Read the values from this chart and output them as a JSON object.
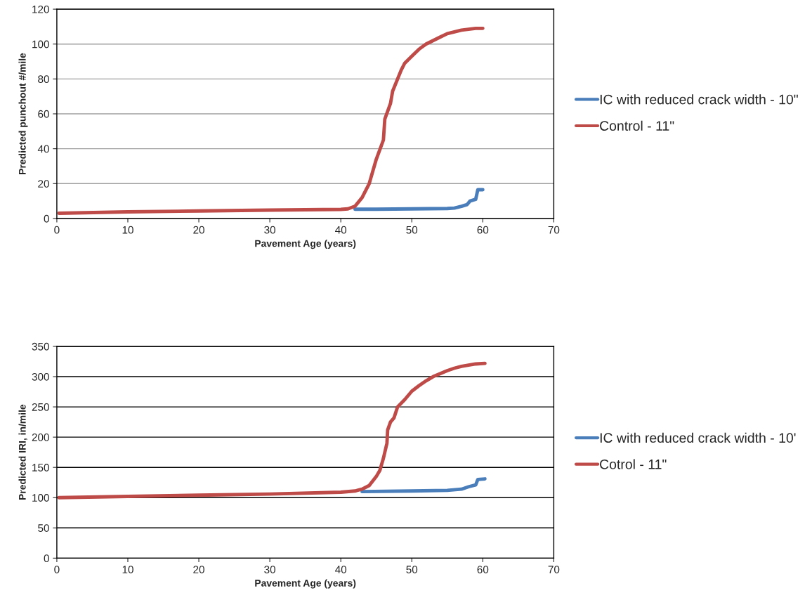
{
  "chart_data": [
    {
      "type": "line",
      "xlabel": "Pavement Age (years)",
      "ylabel": "Predicted punchout #/mile",
      "xlim": [
        0,
        70
      ],
      "xticks": [
        0,
        10,
        20,
        30,
        40,
        50,
        60,
        70
      ],
      "ylim": [
        0,
        120
      ],
      "yticks": [
        0,
        20,
        40,
        60,
        80,
        100,
        120
      ],
      "grid": "y",
      "legend": "right",
      "series": [
        {
          "name": "IC with reduced crack width - 10\"",
          "color": "#4a7ebb",
          "x": [
            42,
            45,
            50,
            55,
            56,
            57,
            57.8,
            58.2,
            59,
            59.3,
            60
          ],
          "values": [
            5.3,
            5.3,
            5.5,
            5.7,
            6,
            7,
            8,
            10,
            11,
            16.5,
            16.5
          ]
        },
        {
          "name": "Control - 11\"",
          "color": "#be4b48",
          "x": [
            0.3,
            10,
            20,
            30,
            40,
            41,
            42,
            43,
            44,
            45,
            46,
            46.2,
            47,
            47.3,
            48,
            48.5,
            49,
            50,
            51,
            52,
            53,
            54,
            55,
            56,
            57,
            58,
            59,
            60
          ],
          "values": [
            3,
            3.8,
            4.3,
            4.8,
            5.2,
            5.5,
            7,
            12,
            20,
            34,
            45,
            57,
            66,
            73,
            80,
            85,
            89,
            93,
            97,
            100,
            102,
            104,
            106,
            107,
            108,
            108.5,
            109,
            109
          ]
        }
      ]
    },
    {
      "type": "line",
      "xlabel": "Pavement Age (years)",
      "ylabel": "Predicted IRI, in/mile",
      "xlim": [
        0,
        70
      ],
      "xticks": [
        0,
        10,
        20,
        30,
        40,
        50,
        60,
        70
      ],
      "ylim": [
        0,
        350
      ],
      "yticks": [
        0,
        50,
        100,
        150,
        200,
        250,
        300,
        350
      ],
      "grid": "y",
      "legend": "right",
      "series": [
        {
          "name": "IC with reduced crack width - 10'",
          "color": "#4a7ebb",
          "x": [
            43,
            50,
            55,
            57,
            58,
            59,
            59.3,
            60.3
          ],
          "values": [
            110,
            111,
            112,
            114,
            118,
            121,
            130,
            131
          ]
        },
        {
          "name": "Cotrol - 11\"",
          "color": "#be4b48",
          "x": [
            0.3,
            10,
            20,
            30,
            40,
            42,
            43,
            44,
            45,
            45.5,
            46,
            46.5,
            46.6,
            47,
            47.5,
            48,
            49,
            50,
            51,
            52,
            53,
            54,
            55,
            56,
            57,
            58,
            59,
            60.3
          ],
          "values": [
            100,
            102,
            104,
            106,
            109,
            111,
            114,
            120,
            135,
            145,
            165,
            190,
            212,
            225,
            232,
            250,
            262,
            276,
            285,
            293,
            300,
            305,
            310,
            314,
            317,
            319,
            321,
            322
          ]
        }
      ]
    }
  ]
}
